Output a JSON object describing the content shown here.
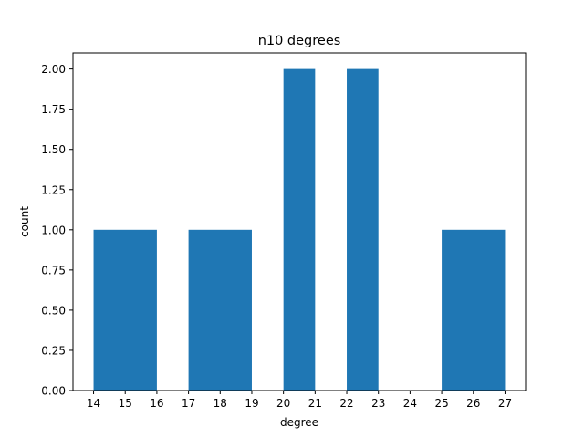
{
  "chart_data": {
    "type": "bar",
    "title": "n10 degrees",
    "xlabel": "degree",
    "ylabel": "count",
    "bins": [
      {
        "start": 14,
        "end": 16,
        "count": 1
      },
      {
        "start": 17,
        "end": 19,
        "count": 1
      },
      {
        "start": 20,
        "end": 21,
        "count": 2
      },
      {
        "start": 22,
        "end": 23,
        "count": 2
      },
      {
        "start": 25,
        "end": 27,
        "count": 1
      }
    ],
    "xticks": [
      "14",
      "15",
      "16",
      "17",
      "18",
      "19",
      "20",
      "21",
      "22",
      "23",
      "24",
      "25",
      "26",
      "27"
    ],
    "yticks": [
      "0.00",
      "0.25",
      "0.50",
      "0.75",
      "1.00",
      "1.25",
      "1.50",
      "1.75",
      "2.00"
    ],
    "xlim": [
      13.35,
      27.65
    ],
    "ylim": [
      0,
      2.1
    ],
    "bar_color": "#1f77b4",
    "grid": false,
    "legend": "none"
  }
}
